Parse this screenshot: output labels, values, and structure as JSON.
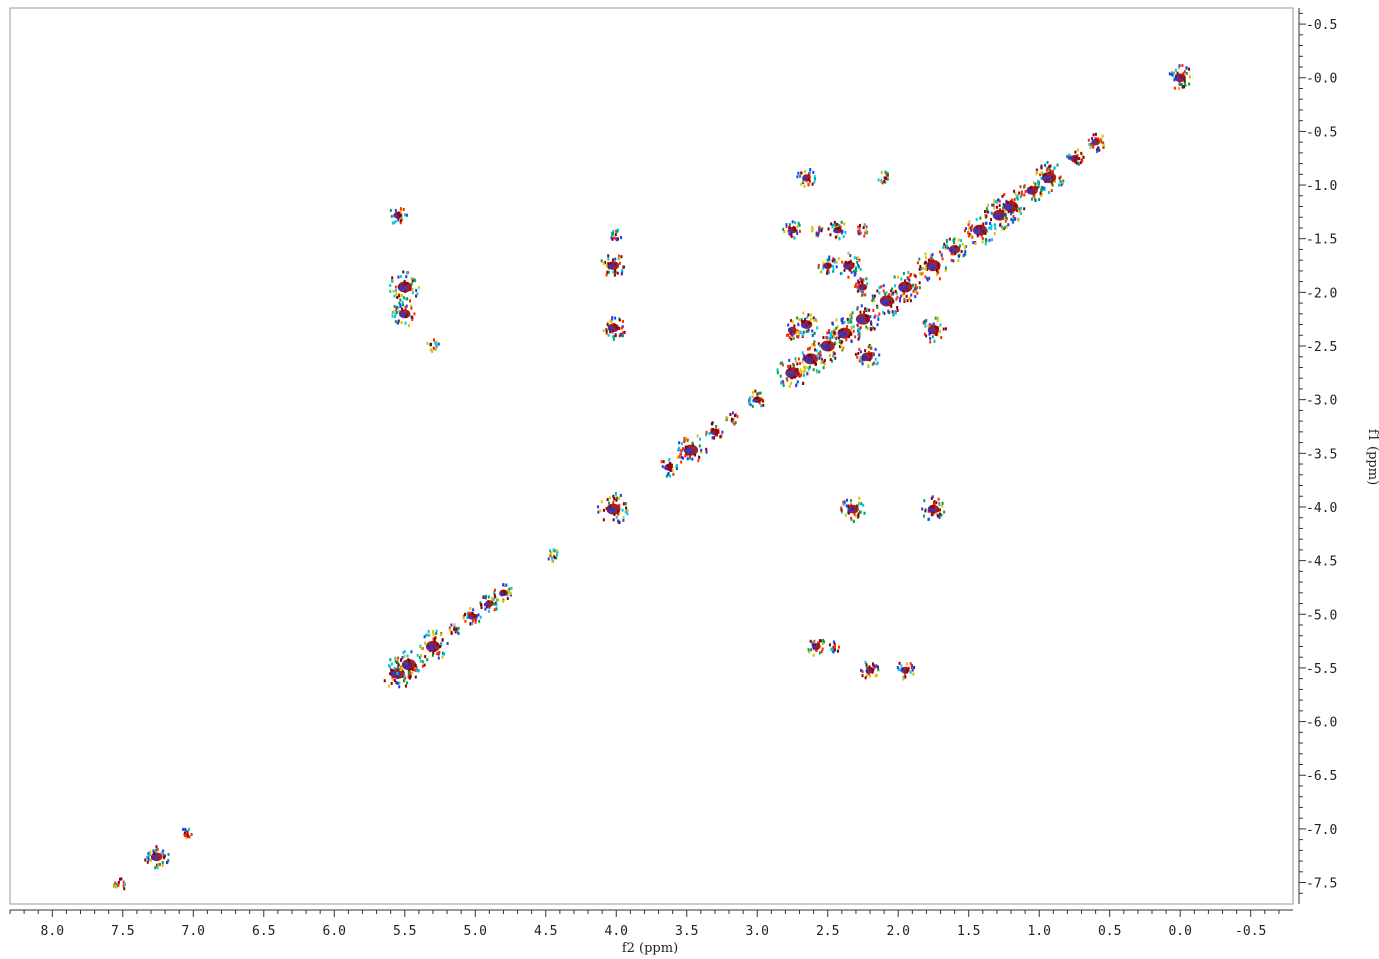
{
  "chart_data": {
    "type": "scatter",
    "subtype": "2D NMR COSY contour plot",
    "title": "",
    "xlabel": "f2 (ppm)",
    "ylabel": "f1 (ppm)",
    "xlim": [
      8.3,
      -0.8
    ],
    "ylim": [
      -0.65,
      7.7
    ],
    "x_ticks": [
      8.0,
      7.5,
      7.0,
      6.5,
      6.0,
      5.5,
      5.0,
      4.5,
      4.0,
      3.5,
      3.0,
      2.5,
      2.0,
      1.5,
      1.0,
      0.5,
      0.0,
      -0.5
    ],
    "x_tick_labels": [
      "8.0",
      "7.5",
      "7.0",
      "6.5",
      "6.0",
      "5.5",
      "5.0",
      "4.5",
      "4.0",
      "3.5",
      "3.0",
      "2.5",
      "2.0",
      "1.5",
      "1.0",
      "0.5",
      "0.0",
      "-0.5"
    ],
    "y_ticks": [
      -0.5,
      0.0,
      0.5,
      1.0,
      1.5,
      2.0,
      2.5,
      3.0,
      3.5,
      4.0,
      4.5,
      5.0,
      5.5,
      6.0,
      6.5,
      7.0,
      7.5
    ],
    "y_tick_labels": [
      "-0.5",
      "0.0",
      "0.5",
      "1.0",
      "1.5",
      "2.0",
      "2.5",
      "3.0",
      "3.5",
      "4.0",
      "4.5",
      "5.0",
      "5.5",
      "6.0",
      "6.5",
      "7.0",
      "7.5"
    ],
    "contour_colors": [
      "#00c8e0",
      "#1a3cff",
      "#ff2a00",
      "#8b0000",
      "#e0c000",
      "#00a050"
    ],
    "diagonal_peaks": [
      {
        "f2": 7.26,
        "f1": 7.26,
        "size": 3
      },
      {
        "f2": 7.05,
        "f1": 7.05,
        "size": 1
      },
      {
        "f2": 7.52,
        "f1": 7.52,
        "size": 1
      },
      {
        "f2": 5.55,
        "f1": 5.55,
        "size": 4
      },
      {
        "f2": 5.47,
        "f1": 5.47,
        "size": 4
      },
      {
        "f2": 5.3,
        "f1": 5.3,
        "size": 4
      },
      {
        "f2": 5.15,
        "f1": 5.15,
        "size": 1
      },
      {
        "f2": 5.02,
        "f1": 5.02,
        "size": 2
      },
      {
        "f2": 4.9,
        "f1": 4.9,
        "size": 2
      },
      {
        "f2": 4.8,
        "f1": 4.8,
        "size": 2
      },
      {
        "f2": 4.45,
        "f1": 4.45,
        "size": 1
      },
      {
        "f2": 4.02,
        "f1": 4.02,
        "size": 4
      },
      {
        "f2": 3.63,
        "f1": 3.63,
        "size": 2
      },
      {
        "f2": 3.47,
        "f1": 3.47,
        "size": 4
      },
      {
        "f2": 3.3,
        "f1": 3.3,
        "size": 2
      },
      {
        "f2": 3.18,
        "f1": 3.18,
        "size": 1
      },
      {
        "f2": 3.0,
        "f1": 3.0,
        "size": 2
      },
      {
        "f2": 2.75,
        "f1": 2.75,
        "size": 4
      },
      {
        "f2": 2.62,
        "f1": 2.62,
        "size": 4
      },
      {
        "f2": 2.5,
        "f1": 2.5,
        "size": 4
      },
      {
        "f2": 2.38,
        "f1": 2.38,
        "size": 4
      },
      {
        "f2": 2.25,
        "f1": 2.25,
        "size": 4
      },
      {
        "f2": 2.08,
        "f1": 2.08,
        "size": 4
      },
      {
        "f2": 1.95,
        "f1": 1.95,
        "size": 4
      },
      {
        "f2": 1.75,
        "f1": 1.75,
        "size": 4
      },
      {
        "f2": 1.6,
        "f1": 1.6,
        "size": 3
      },
      {
        "f2": 1.42,
        "f1": 1.42,
        "size": 4
      },
      {
        "f2": 1.28,
        "f1": 1.28,
        "size": 4
      },
      {
        "f2": 1.2,
        "f1": 1.2,
        "size": 4
      },
      {
        "f2": 1.05,
        "f1": 1.05,
        "size": 3
      },
      {
        "f2": 0.93,
        "f1": 0.93,
        "size": 4
      },
      {
        "f2": 0.75,
        "f1": 0.75,
        "size": 2
      },
      {
        "f2": 0.6,
        "f1": 0.6,
        "size": 2
      },
      {
        "f2": 0.0,
        "f1": 0.0,
        "size": 3
      }
    ],
    "cross_peaks": [
      {
        "f2": 5.55,
        "f1": 1.28,
        "size": 2
      },
      {
        "f2": 5.5,
        "f1": 1.95,
        "size": 4
      },
      {
        "f2": 5.5,
        "f1": 2.2,
        "size": 3
      },
      {
        "f2": 5.3,
        "f1": 2.5,
        "size": 1
      },
      {
        "f2": 4.02,
        "f1": 1.75,
        "size": 3
      },
      {
        "f2": 4.02,
        "f1": 2.33,
        "size": 3
      },
      {
        "f2": 4.0,
        "f1": 1.47,
        "size": 1
      },
      {
        "f2": 2.65,
        "f1": 0.93,
        "size": 2
      },
      {
        "f2": 2.1,
        "f1": 0.93,
        "size": 1
      },
      {
        "f2": 2.75,
        "f1": 1.42,
        "size": 2
      },
      {
        "f2": 2.58,
        "f1": 1.42,
        "size": 1
      },
      {
        "f2": 2.43,
        "f1": 1.42,
        "size": 2
      },
      {
        "f2": 2.25,
        "f1": 1.42,
        "size": 1
      },
      {
        "f2": 2.35,
        "f1": 1.75,
        "size": 3
      },
      {
        "f2": 2.5,
        "f1": 1.75,
        "size": 2
      },
      {
        "f2": 2.65,
        "f1": 2.3,
        "size": 3
      },
      {
        "f2": 2.75,
        "f1": 2.35,
        "size": 2
      },
      {
        "f2": 2.22,
        "f1": 2.6,
        "size": 3
      },
      {
        "f2": 2.25,
        "f1": 1.95,
        "size": 2
      },
      {
        "f2": 1.75,
        "f1": 2.35,
        "size": 3
      },
      {
        "f2": 2.32,
        "f1": 4.02,
        "size": 3
      },
      {
        "f2": 1.75,
        "f1": 4.02,
        "size": 3
      },
      {
        "f2": 2.58,
        "f1": 5.3,
        "size": 2
      },
      {
        "f2": 2.45,
        "f1": 5.3,
        "size": 1
      },
      {
        "f2": 2.2,
        "f1": 5.52,
        "size": 2
      },
      {
        "f2": 1.95,
        "f1": 5.52,
        "size": 2
      }
    ]
  }
}
